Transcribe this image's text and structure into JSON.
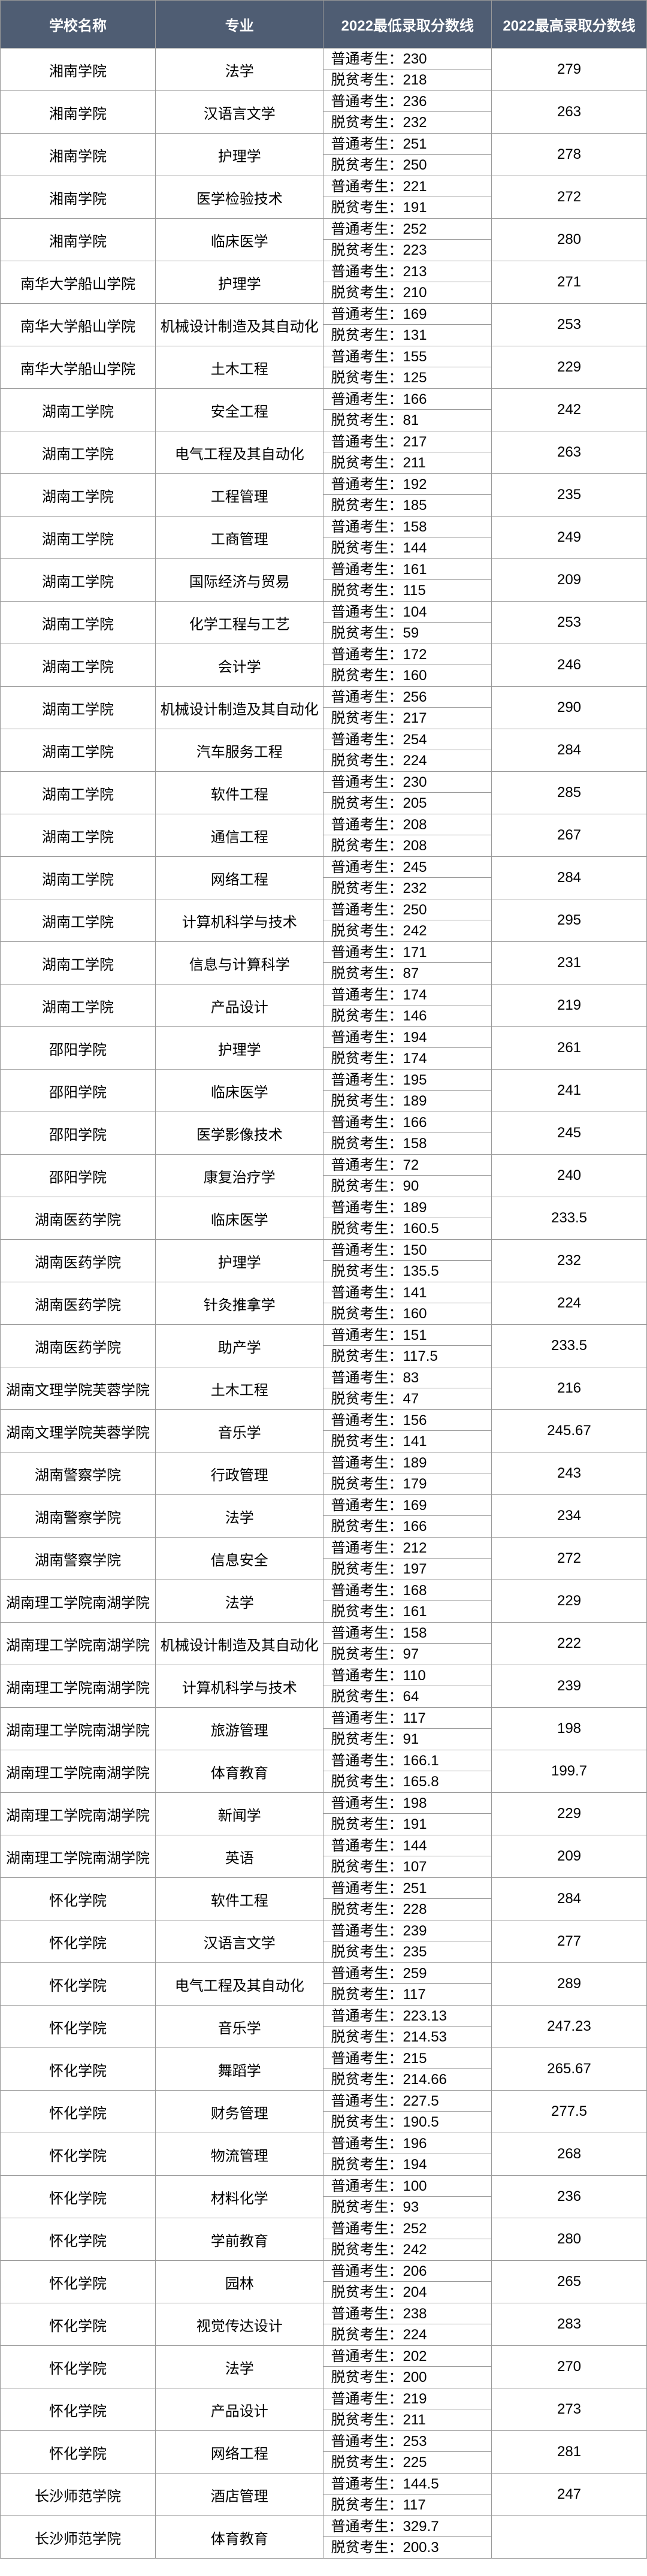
{
  "headers": {
    "school": "学校名称",
    "major": "专业",
    "min": "2022最低录取分数线",
    "max": "2022最高录取分数线"
  },
  "label_normal": "普通考生：",
  "label_poverty": "脱贫考生：",
  "rows": [
    {
      "school": "湘南学院",
      "major": "法学",
      "n": "230",
      "p": "218",
      "max": "279"
    },
    {
      "school": "湘南学院",
      "major": "汉语言文学",
      "n": "236",
      "p": "232",
      "max": "263"
    },
    {
      "school": "湘南学院",
      "major": "护理学",
      "n": "251",
      "p": "250",
      "max": "278"
    },
    {
      "school": "湘南学院",
      "major": "医学检验技术",
      "n": "221",
      "p": "191",
      "max": "272"
    },
    {
      "school": "湘南学院",
      "major": "临床医学",
      "n": "252",
      "p": "223",
      "max": "280"
    },
    {
      "school": "南华大学船山学院",
      "major": "护理学",
      "n": "213",
      "p": "210",
      "max": "271"
    },
    {
      "school": "南华大学船山学院",
      "major": "机械设计制造及其自动化",
      "n": "169",
      "p": "131",
      "max": "253"
    },
    {
      "school": "南华大学船山学院",
      "major": "土木工程",
      "n": "155",
      "p": "125",
      "max": "229"
    },
    {
      "school": "湖南工学院",
      "major": "安全工程",
      "n": "166",
      "p": "81",
      "max": "242"
    },
    {
      "school": "湖南工学院",
      "major": "电气工程及其自动化",
      "n": "217",
      "p": "211",
      "max": "263"
    },
    {
      "school": "湖南工学院",
      "major": "工程管理",
      "n": "192",
      "p": "185",
      "max": "235"
    },
    {
      "school": "湖南工学院",
      "major": "工商管理",
      "n": "158",
      "p": "144",
      "max": "249"
    },
    {
      "school": "湖南工学院",
      "major": "国际经济与贸易",
      "n": "161",
      "p": "115",
      "max": "209"
    },
    {
      "school": "湖南工学院",
      "major": "化学工程与工艺",
      "n": "104",
      "p": "59",
      "max": "253"
    },
    {
      "school": "湖南工学院",
      "major": "会计学",
      "n": "172",
      "p": "160",
      "max": "246"
    },
    {
      "school": "湖南工学院",
      "major": "机械设计制造及其自动化",
      "n": "256",
      "p": "217",
      "max": "290"
    },
    {
      "school": "湖南工学院",
      "major": "汽车服务工程",
      "n": "254",
      "p": "224",
      "max": "284"
    },
    {
      "school": "湖南工学院",
      "major": "软件工程",
      "n": "230",
      "p": "205",
      "max": "285"
    },
    {
      "school": "湖南工学院",
      "major": "通信工程",
      "n": "208",
      "p": "208",
      "max": "267"
    },
    {
      "school": "湖南工学院",
      "major": "网络工程",
      "n": "245",
      "p": "232",
      "max": "284"
    },
    {
      "school": "湖南工学院",
      "major": "计算机科学与技术",
      "n": "250",
      "p": "242",
      "max": "295"
    },
    {
      "school": "湖南工学院",
      "major": "信息与计算科学",
      "n": "171",
      "p": "87",
      "max": "231"
    },
    {
      "school": "湖南工学院",
      "major": "产品设计",
      "n": "174",
      "p": "146",
      "max": "219"
    },
    {
      "school": "邵阳学院",
      "major": "护理学",
      "n": "194",
      "p": "174",
      "max": "261"
    },
    {
      "school": "邵阳学院",
      "major": "临床医学",
      "n": "195",
      "p": "189",
      "max": "241"
    },
    {
      "school": "邵阳学院",
      "major": "医学影像技术",
      "n": "166",
      "p": "158",
      "max": "245"
    },
    {
      "school": "邵阳学院",
      "major": "康复治疗学",
      "n": "72",
      "p": "90",
      "max": "240"
    },
    {
      "school": "湖南医药学院",
      "major": "临床医学",
      "n": "189",
      "p": "160.5",
      "max": "233.5"
    },
    {
      "school": "湖南医药学院",
      "major": "护理学",
      "n": "150",
      "p": "135.5",
      "max": "232"
    },
    {
      "school": "湖南医药学院",
      "major": "针灸推拿学",
      "n": "141",
      "p": "160",
      "max": "224"
    },
    {
      "school": "湖南医药学院",
      "major": "助产学",
      "n": "151",
      "p": "117.5",
      "max": "233.5"
    },
    {
      "school": "湖南文理学院芙蓉学院",
      "major": "土木工程",
      "n": "83",
      "p": "47",
      "max": "216"
    },
    {
      "school": "湖南文理学院芙蓉学院",
      "major": "音乐学",
      "n": "156",
      "p": "141",
      "max": "245.67"
    },
    {
      "school": "湖南警察学院",
      "major": "行政管理",
      "n": "189",
      "p": "179",
      "max": "243"
    },
    {
      "school": "湖南警察学院",
      "major": "法学",
      "n": "169",
      "p": "166",
      "max": "234"
    },
    {
      "school": "湖南警察学院",
      "major": "信息安全",
      "n": "212",
      "p": "197",
      "max": "272"
    },
    {
      "school": "湖南理工学院南湖学院",
      "major": "法学",
      "n": "168",
      "p": "161",
      "max": "229"
    },
    {
      "school": "湖南理工学院南湖学院",
      "major": "机械设计制造及其自动化",
      "n": "158",
      "p": "97",
      "max": "222"
    },
    {
      "school": "湖南理工学院南湖学院",
      "major": "计算机科学与技术",
      "n": "110",
      "p": "64",
      "max": "239"
    },
    {
      "school": "湖南理工学院南湖学院",
      "major": "旅游管理",
      "n": "117",
      "p": "91",
      "max": "198"
    },
    {
      "school": "湖南理工学院南湖学院",
      "major": "体育教育",
      "n": "166.1",
      "p": "165.8",
      "max": "199.7"
    },
    {
      "school": "湖南理工学院南湖学院",
      "major": "新闻学",
      "n": "198",
      "p": "191",
      "max": "229"
    },
    {
      "school": "湖南理工学院南湖学院",
      "major": "英语",
      "n": "144",
      "p": "107",
      "max": "209"
    },
    {
      "school": "怀化学院",
      "major": "软件工程",
      "n": "251",
      "p": "228",
      "max": "284"
    },
    {
      "school": "怀化学院",
      "major": "汉语言文学",
      "n": "239",
      "p": "235",
      "max": "277"
    },
    {
      "school": "怀化学院",
      "major": "电气工程及其自动化",
      "n": "259",
      "p": "117",
      "max": "289"
    },
    {
      "school": "怀化学院",
      "major": "音乐学",
      "n": "223.13",
      "p": "214.53",
      "max": "247.23"
    },
    {
      "school": "怀化学院",
      "major": "舞蹈学",
      "n": "215",
      "p": "214.66",
      "max": "265.67"
    },
    {
      "school": "怀化学院",
      "major": "财务管理",
      "n": "227.5",
      "p": "190.5",
      "max": "277.5"
    },
    {
      "school": "怀化学院",
      "major": "物流管理",
      "n": "196",
      "p": "194",
      "max": "268"
    },
    {
      "school": "怀化学院",
      "major": "材料化学",
      "n": "100",
      "p": "93",
      "max": "236"
    },
    {
      "school": "怀化学院",
      "major": "学前教育",
      "n": "252",
      "p": "242",
      "max": "280"
    },
    {
      "school": "怀化学院",
      "major": "园林",
      "n": "206",
      "p": "204",
      "max": "265"
    },
    {
      "school": "怀化学院",
      "major": "视觉传达设计",
      "n": "238",
      "p": "224",
      "max": "283"
    },
    {
      "school": "怀化学院",
      "major": "法学",
      "n": "202",
      "p": "200",
      "max": "270"
    },
    {
      "school": "怀化学院",
      "major": "产品设计",
      "n": "219",
      "p": "211",
      "max": "273"
    },
    {
      "school": "怀化学院",
      "major": "网络工程",
      "n": "253",
      "p": "225",
      "max": "281"
    },
    {
      "school": "长沙师范学院",
      "major": "酒店管理",
      "n": "144.5",
      "p": "117",
      "max": "247"
    },
    {
      "school": "长沙师范学院",
      "major": "体育教育",
      "n": "329.7",
      "p": "200.3",
      "max": ""
    }
  ]
}
